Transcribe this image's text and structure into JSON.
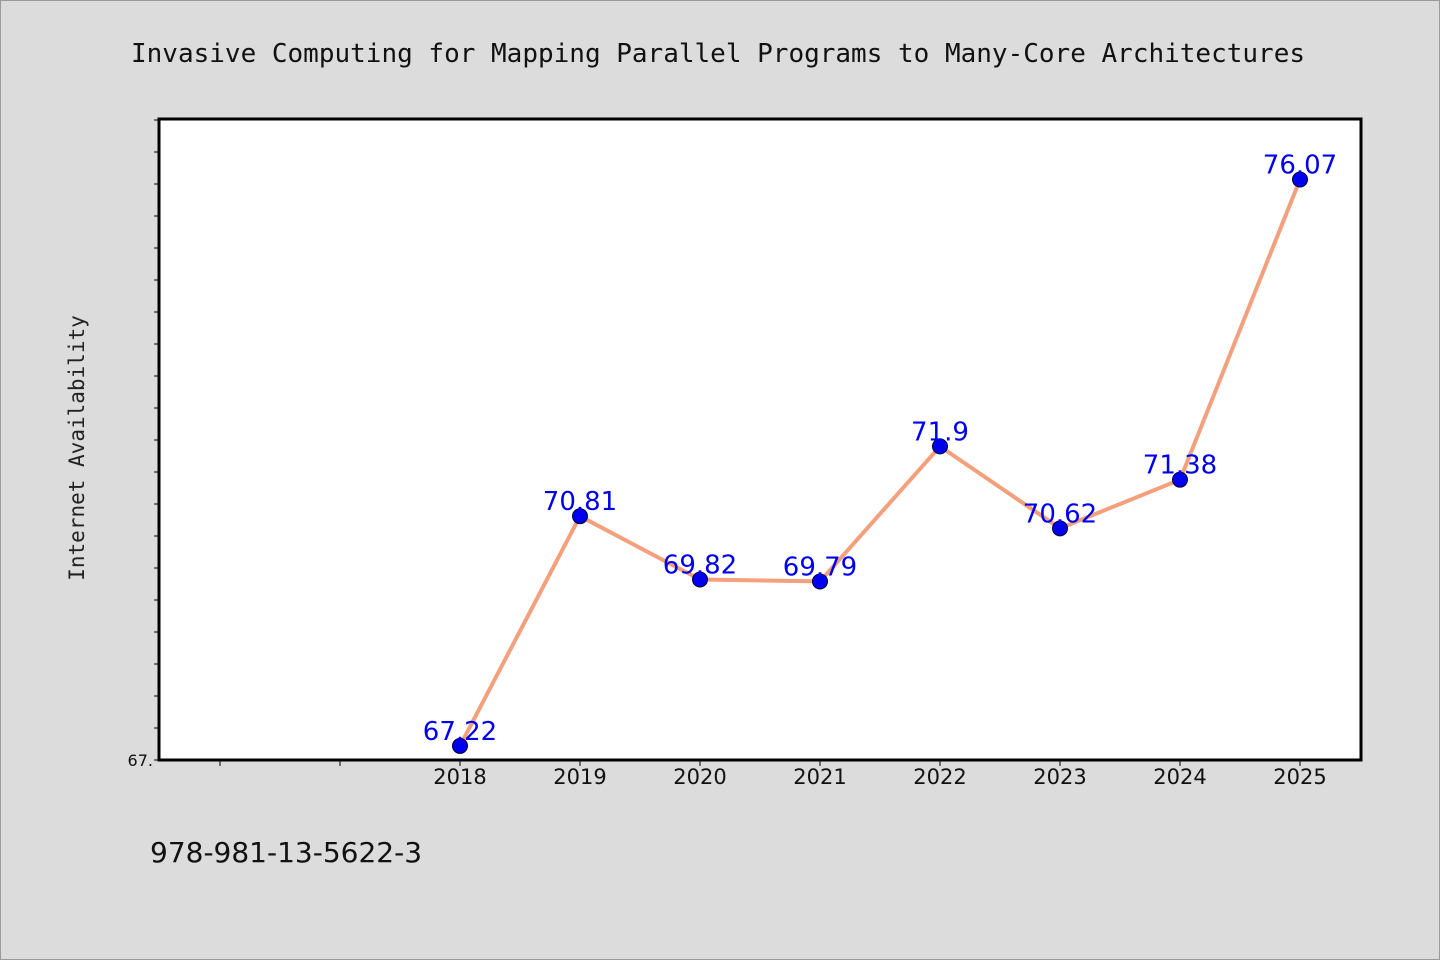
{
  "chart_data": {
    "type": "line",
    "title": "Invasive Computing for Mapping Parallel Programs to Many-Core Architectures",
    "ylabel": "Internet Availability",
    "xlabel": "",
    "y_tick_label": "67.",
    "x": [
      "2018",
      "2019",
      "2020",
      "2021",
      "2022",
      "2023",
      "2024",
      "2025"
    ],
    "series": [
      {
        "values": [
          67.22,
          70.81,
          69.82,
          69.79,
          71.9,
          70.62,
          71.38,
          76.07
        ],
        "labels": [
          "67.22",
          "70.81",
          "69.82",
          "69.79",
          "71.9",
          "70.62",
          "71.38",
          "76.07"
        ]
      }
    ],
    "ylim": [
      67,
      77
    ],
    "x_slots": 10,
    "grid": false,
    "line_color": "#f4a07c",
    "marker_color": "#0000ee",
    "label_color": "#0000ee"
  },
  "footer_text": "978-981-13-5622-3"
}
